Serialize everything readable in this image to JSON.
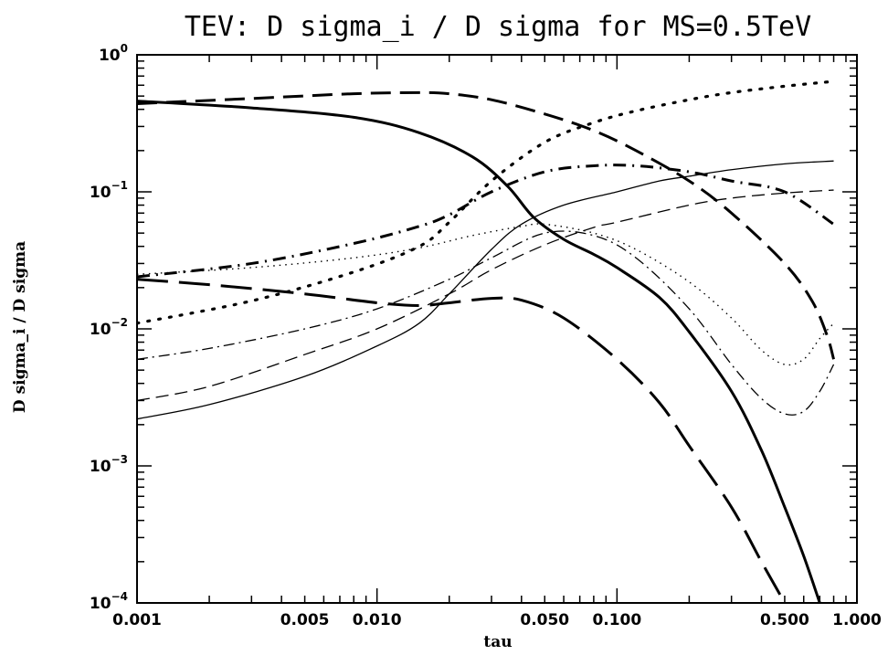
{
  "chart_data": {
    "type": "line",
    "title": "TEV: D sigma_i / D sigma for  MS=0.5TeV",
    "xlabel": "tau",
    "ylabel": "D sigma_i / D sigma",
    "xscale": "log",
    "yscale": "log",
    "xlim": [
      0.001,
      1.0
    ],
    "ylim": [
      0.0001,
      1.0
    ],
    "xticks": [
      {
        "value": 0.001,
        "label": "0.001"
      },
      {
        "value": 0.005,
        "label": "0.005"
      },
      {
        "value": 0.01,
        "label": "0.010"
      },
      {
        "value": 0.05,
        "label": "0.050"
      },
      {
        "value": 0.1,
        "label": "0.100"
      },
      {
        "value": 0.5,
        "label": "0.500"
      },
      {
        "value": 1.0,
        "label": "1.000"
      }
    ],
    "yticks": [
      {
        "value": 1,
        "base": "10",
        "exp": "0"
      },
      {
        "value": 0.1,
        "base": "10",
        "exp": "−1"
      },
      {
        "value": 0.01,
        "base": "10",
        "exp": "−2"
      },
      {
        "value": 0.001,
        "base": "10",
        "exp": "−3"
      },
      {
        "value": 0.0001,
        "base": "10",
        "exp": "−4"
      }
    ],
    "grid": false,
    "series": [
      {
        "style": "thick-solid",
        "x": [
          0.001,
          0.003,
          0.008,
          0.015,
          0.025,
          0.035,
          0.045,
          0.06,
          0.08,
          0.1,
          0.15,
          0.2,
          0.3,
          0.4,
          0.5,
          0.6,
          0.7
        ],
        "y": [
          0.46,
          0.41,
          0.35,
          0.27,
          0.18,
          0.11,
          0.065,
          0.045,
          0.035,
          0.028,
          0.017,
          0.0095,
          0.0035,
          0.0013,
          0.0005,
          0.00022,
          0.0001
        ]
      },
      {
        "style": "thick-short-dash",
        "x": [
          0.001,
          0.003,
          0.008,
          0.015,
          0.02,
          0.03,
          0.05,
          0.08,
          0.12,
          0.2,
          0.3,
          0.5,
          0.65,
          0.75,
          0.8
        ],
        "y": [
          0.44,
          0.48,
          0.52,
          0.53,
          0.52,
          0.47,
          0.37,
          0.28,
          0.2,
          0.12,
          0.07,
          0.03,
          0.016,
          0.009,
          0.006
        ]
      },
      {
        "style": "thick-long-dash",
        "x": [
          0.001,
          0.002,
          0.005,
          0.01,
          0.015,
          0.02,
          0.03,
          0.04,
          0.06,
          0.1,
          0.15,
          0.2,
          0.3,
          0.4,
          0.5
        ],
        "y": [
          0.023,
          0.021,
          0.018,
          0.0155,
          0.0148,
          0.0155,
          0.0167,
          0.0162,
          0.012,
          0.006,
          0.0029,
          0.0014,
          0.0005,
          0.0002,
          0.0001
        ]
      },
      {
        "style": "thick-dot",
        "x": [
          0.001,
          0.003,
          0.008,
          0.015,
          0.02,
          0.03,
          0.05,
          0.08,
          0.12,
          0.2,
          0.3,
          0.5,
          0.8
        ],
        "y": [
          0.011,
          0.016,
          0.026,
          0.04,
          0.06,
          0.12,
          0.23,
          0.32,
          0.39,
          0.47,
          0.53,
          0.59,
          0.64
        ]
      },
      {
        "style": "thick-dashdot",
        "x": [
          0.001,
          0.003,
          0.008,
          0.015,
          0.02,
          0.03,
          0.05,
          0.08,
          0.12,
          0.2,
          0.3,
          0.5,
          0.8
        ],
        "y": [
          0.024,
          0.03,
          0.042,
          0.056,
          0.068,
          0.1,
          0.14,
          0.155,
          0.155,
          0.14,
          0.12,
          0.1,
          0.058
        ]
      },
      {
        "style": "thin-solid",
        "x": [
          0.001,
          0.002,
          0.005,
          0.01,
          0.015,
          0.02,
          0.03,
          0.04,
          0.06,
          0.1,
          0.15,
          0.2,
          0.3,
          0.5,
          0.8
        ],
        "y": [
          0.0022,
          0.0028,
          0.0045,
          0.0075,
          0.011,
          0.018,
          0.038,
          0.058,
          0.08,
          0.1,
          0.12,
          0.13,
          0.145,
          0.16,
          0.168
        ]
      },
      {
        "style": "thin-dash",
        "x": [
          0.001,
          0.002,
          0.005,
          0.01,
          0.02,
          0.03,
          0.05,
          0.08,
          0.1,
          0.2,
          0.3,
          0.5,
          0.8
        ],
        "y": [
          0.003,
          0.0038,
          0.0065,
          0.01,
          0.018,
          0.027,
          0.041,
          0.055,
          0.06,
          0.08,
          0.09,
          0.098,
          0.103
        ]
      },
      {
        "style": "thin-dot",
        "x": [
          0.001,
          0.003,
          0.008,
          0.015,
          0.025,
          0.04,
          0.05,
          0.08,
          0.12,
          0.2,
          0.3,
          0.4,
          0.5,
          0.6,
          0.7,
          0.8
        ],
        "y": [
          0.025,
          0.028,
          0.033,
          0.039,
          0.048,
          0.056,
          0.058,
          0.05,
          0.038,
          0.022,
          0.012,
          0.007,
          0.0055,
          0.006,
          0.0085,
          0.011
        ]
      },
      {
        "style": "thin-dashdot",
        "x": [
          0.001,
          0.002,
          0.005,
          0.01,
          0.02,
          0.03,
          0.05,
          0.08,
          0.12,
          0.2,
          0.3,
          0.4,
          0.5,
          0.6,
          0.7,
          0.8
        ],
        "y": [
          0.006,
          0.0072,
          0.01,
          0.014,
          0.023,
          0.033,
          0.05,
          0.048,
          0.033,
          0.014,
          0.0055,
          0.0031,
          0.0024,
          0.0025,
          0.0035,
          0.0055
        ]
      }
    ]
  }
}
